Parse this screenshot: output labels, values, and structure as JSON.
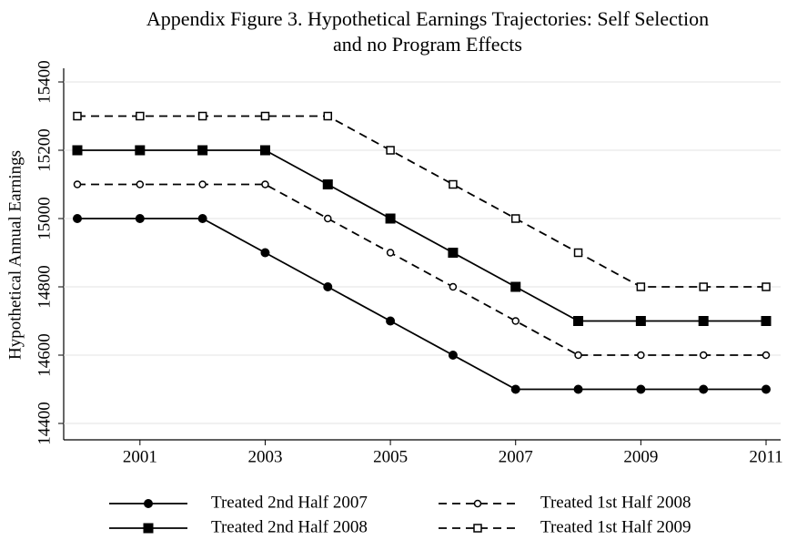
{
  "chart_data": {
    "type": "line",
    "title": [
      "Appendix Figure 3. Hypothetical Earnings Trajectories: Self Selection",
      "and no Program Effects"
    ],
    "y_label": "Hypothetical Annual Earnings",
    "x": [
      2000,
      2001,
      2002,
      2003,
      2004,
      2005,
      2006,
      2007,
      2008,
      2009,
      2010,
      2011
    ],
    "series": [
      {
        "name": "Treated 2nd Half 2007",
        "color": "#000000",
        "line_style": "solid",
        "marker": "circle",
        "filled": true,
        "values": [
          15000,
          15000,
          15000,
          14900,
          14800,
          14700,
          14600,
          14500,
          14500,
          14500,
          14500,
          14500
        ]
      },
      {
        "name": "Treated 1st Half 2008",
        "color": "#000000",
        "line_style": "dashed",
        "marker": "circle",
        "filled": false,
        "values": [
          15100,
          15100,
          15100,
          15100,
          15000,
          14900,
          14800,
          14700,
          14600,
          14600,
          14600,
          14600
        ]
      },
      {
        "name": "Treated 2nd Half 2008",
        "color": "#000000",
        "line_style": "solid",
        "marker": "square",
        "filled": true,
        "values": [
          15200,
          15200,
          15200,
          15200,
          15100,
          15000,
          14900,
          14800,
          14700,
          14700,
          14700,
          14700
        ]
      },
      {
        "name": "Treated 1st Half 2009",
        "color": "#000000",
        "line_style": "dashed",
        "marker": "square",
        "filled": false,
        "values": [
          15300,
          15300,
          15300,
          15300,
          15300,
          15200,
          15100,
          15000,
          14900,
          14800,
          14800,
          14800
        ]
      }
    ],
    "xlim": [
      2000,
      2011
    ],
    "xticks": [
      2001,
      2003,
      2005,
      2007,
      2009,
      2011
    ],
    "ylim": [
      14400,
      15400
    ],
    "yticks": [
      14400,
      14600,
      14800,
      15000,
      15200,
      15400
    ],
    "grid": true,
    "legend": "bottom"
  }
}
